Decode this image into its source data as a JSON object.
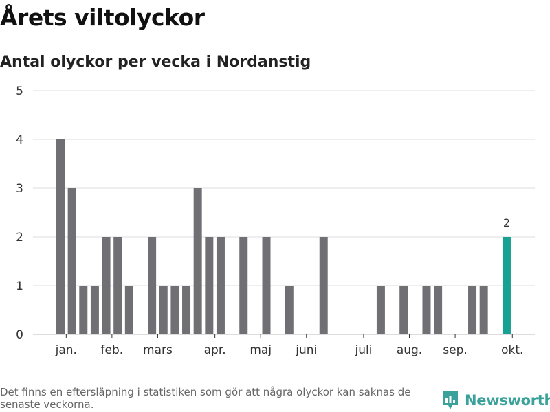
{
  "header": {
    "title": "Årets viltolyckor",
    "subtitle": "Antal olyckor per vecka i Nordanstig"
  },
  "footer": {
    "note": "Det finns en eftersläpning i statistiken som gör att några olyckor kan saknas de senaste veckorna.",
    "brand": "Newsworthy"
  },
  "colors": {
    "bar": "#707074",
    "highlight": "#18a092",
    "grid": "#dddddd",
    "brand": "#3aa29a"
  },
  "icons": {
    "brand_logo": "newsworthy-logo-icon"
  },
  "chart_data": {
    "type": "bar",
    "title": "Årets viltolyckor",
    "subtitle": "Antal olyckor per vecka i Nordanstig",
    "x": [
      1,
      2,
      3,
      4,
      5,
      6,
      7,
      8,
      9,
      10,
      11,
      12,
      13,
      14,
      15,
      16,
      17,
      18,
      19,
      20,
      21,
      22,
      23,
      24,
      25,
      26,
      27,
      28,
      29,
      30,
      31,
      32,
      33,
      34,
      35,
      36,
      37,
      38,
      39,
      40
    ],
    "values": [
      4,
      3,
      1,
      1,
      2,
      2,
      1,
      0,
      2,
      1,
      1,
      1,
      3,
      2,
      2,
      0,
      2,
      0,
      2,
      0,
      1,
      0,
      0,
      2,
      0,
      0,
      0,
      0,
      1,
      0,
      1,
      0,
      1,
      1,
      0,
      0,
      1,
      1,
      0,
      2
    ],
    "highlight_index": 40,
    "highlight_value": 2,
    "highlight_label": "2",
    "ylim": [
      0,
      5
    ],
    "yticks": [
      "0",
      "1",
      "2",
      "3",
      "4",
      "5"
    ],
    "month_ticks": [
      {
        "label": "jan.",
        "x": 1.5
      },
      {
        "label": "feb.",
        "x": 5.5
      },
      {
        "label": "mars",
        "x": 9.5
      },
      {
        "label": "apr.",
        "x": 14.5
      },
      {
        "label": "maj",
        "x": 18.5
      },
      {
        "label": "juni",
        "x": 22.5
      },
      {
        "label": "juli",
        "x": 27.5
      },
      {
        "label": "aug.",
        "x": 31.5
      },
      {
        "label": "sep.",
        "x": 35.5
      },
      {
        "label": "okt.",
        "x": 40.5
      }
    ],
    "grid": true,
    "xlabel": "",
    "ylabel": ""
  }
}
